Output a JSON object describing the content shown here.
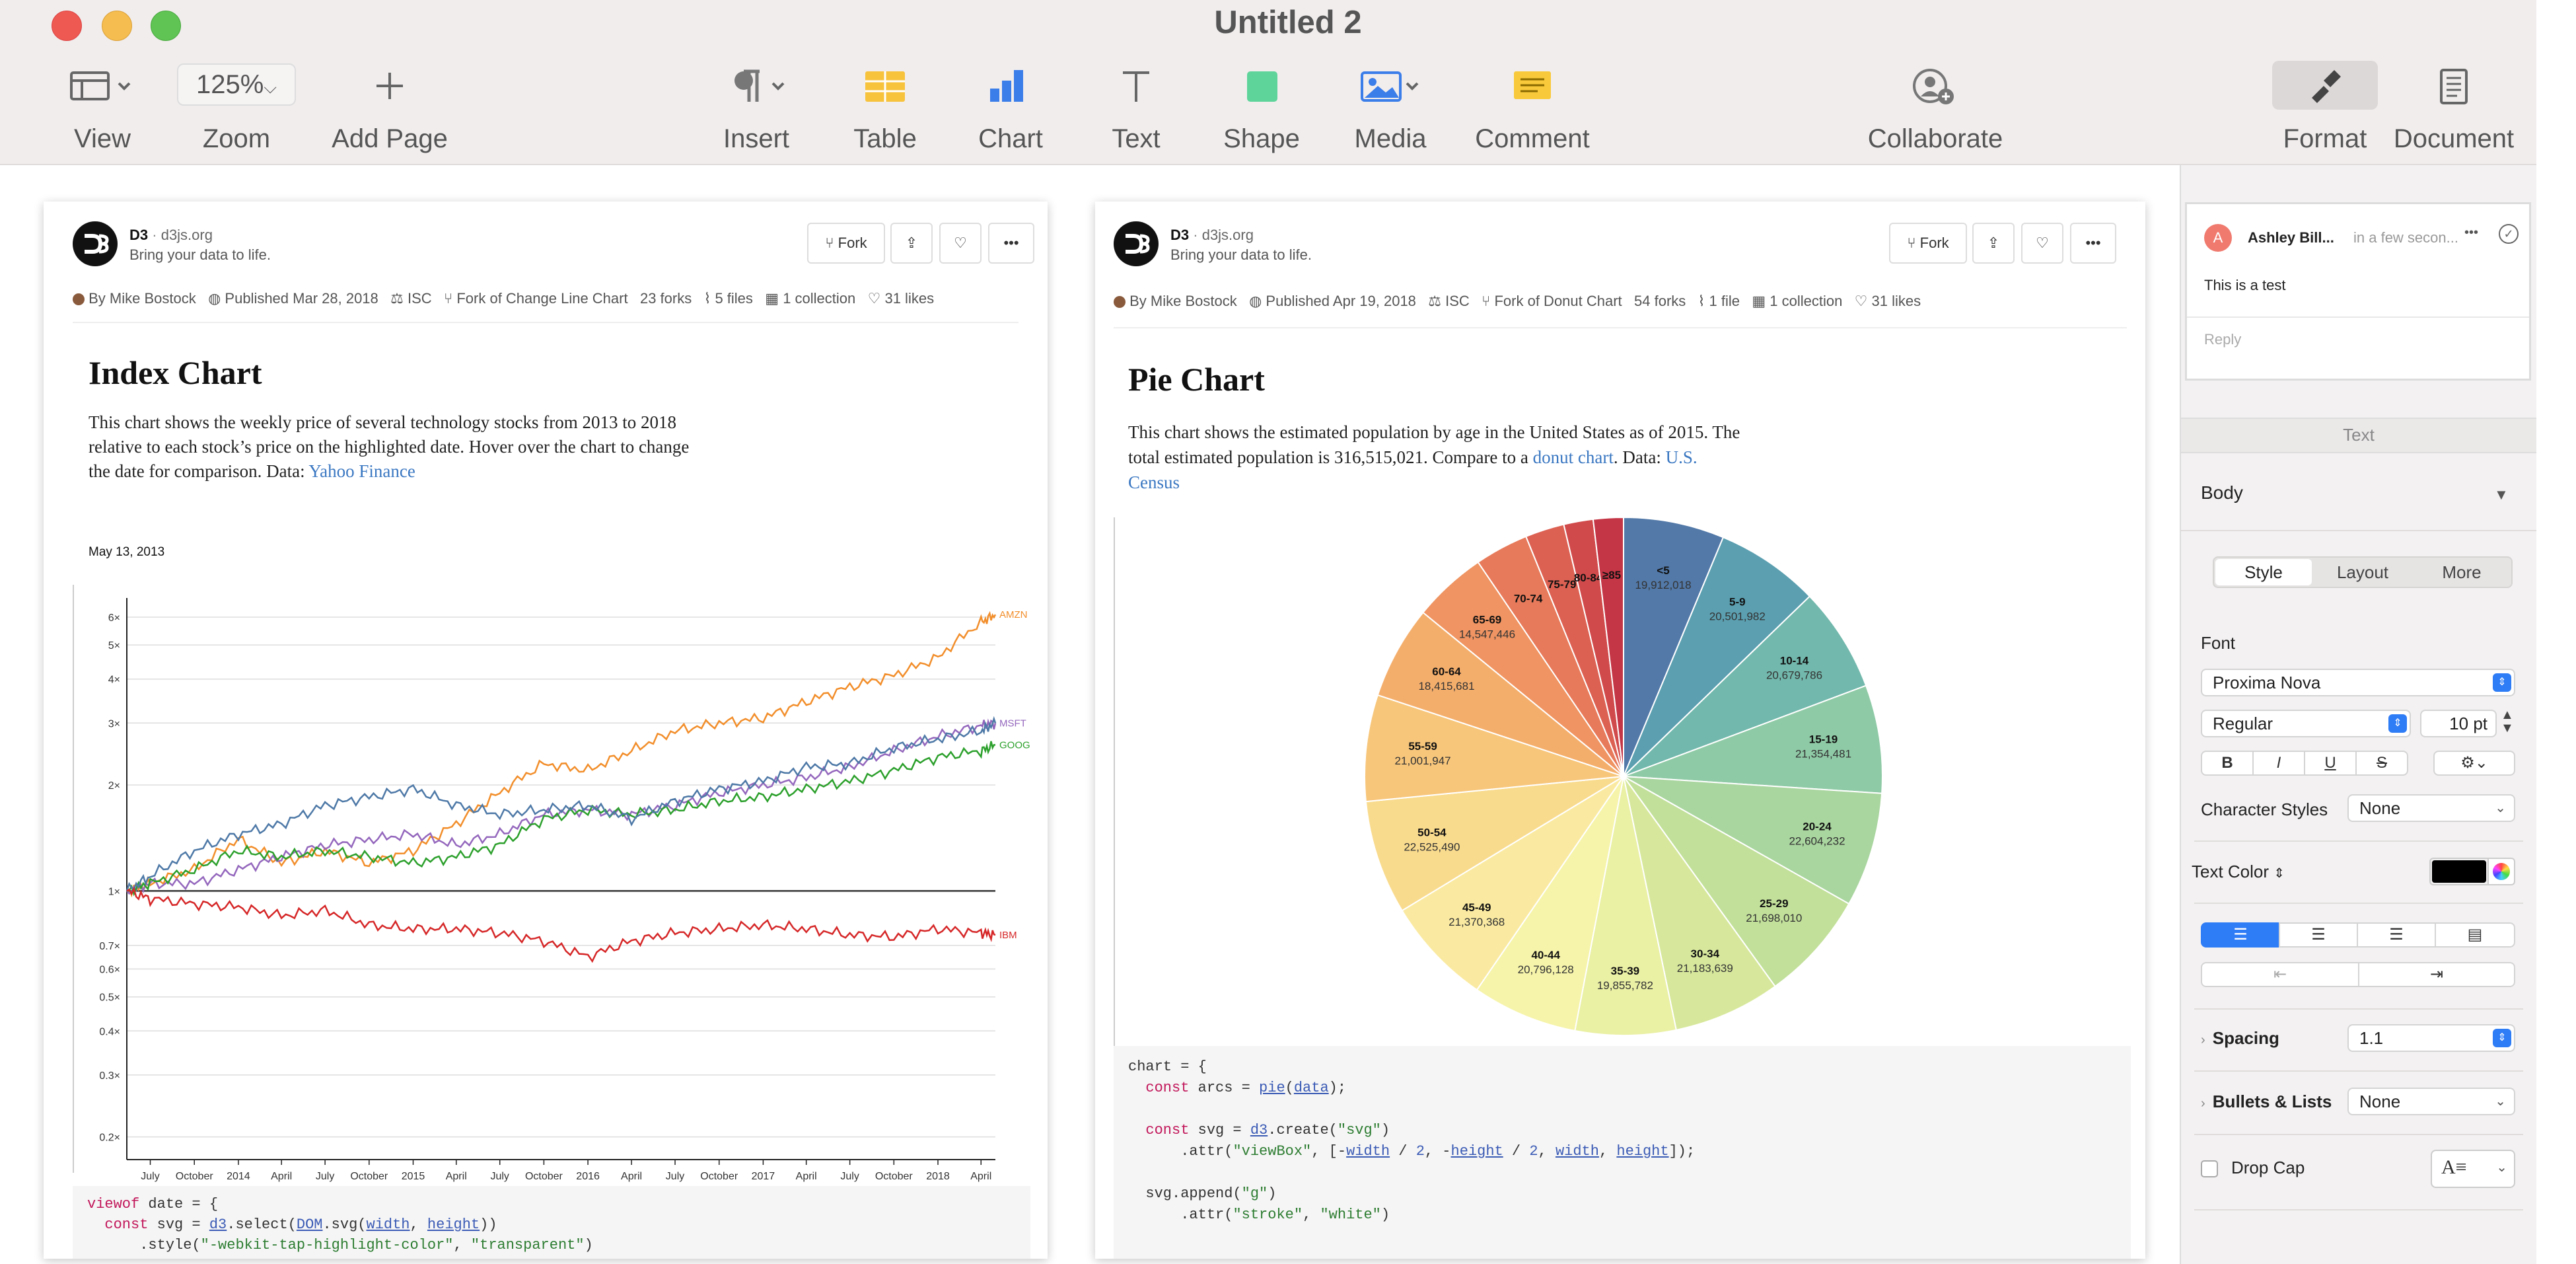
{
  "window": {
    "title": "Untitled 2"
  },
  "toolbar": {
    "view_label": "View",
    "zoom_value": "125%",
    "zoom_label": "Zoom",
    "add_page_label": "Add Page",
    "insert_label": "Insert",
    "table_label": "Table",
    "chart_label": "Chart",
    "text_label": "Text",
    "shape_label": "Shape",
    "media_label": "Media",
    "comment_label": "Comment",
    "collaborate_label": "Collaborate",
    "format_label": "Format",
    "document_label": "Document"
  },
  "doc1": {
    "brand": "D3",
    "site": "d3js.org",
    "tagline": "Bring your data to life.",
    "fork_label": "Fork",
    "author": "By Mike Bostock",
    "published": "Published Mar 28, 2018",
    "license": "ISC",
    "fork_of": "Fork of Change Line Chart",
    "forks": "23 forks",
    "files": "5 files",
    "collections": "1 collection",
    "likes": "31 likes",
    "title": "Index Chart",
    "desc1": "This chart shows the weekly price of several technology stocks from 2013 to 2018",
    "desc2": "relative to each stock’s price on the highlighted date. Hover over the chart to change",
    "desc3_prefix": "the date for comparison. Data: ",
    "desc3_link": "Yahoo Finance",
    "date_label": "May 13, 2013",
    "code1_kw": "viewof",
    "code1_rest": " date = {",
    "code2_kw": "const",
    "code2_a": " svg = ",
    "code2_b": "d3",
    "code2_c": ".select(",
    "code2_d": "DOM",
    "code2_e": ".svg(",
    "code2_f": "width",
    "code2_g": ", ",
    "code2_h": "height",
    "code2_i": "))",
    "code3_a": ".style(",
    "code3_b": "\"-webkit-tap-highlight-color\"",
    "code3_c": ", ",
    "code3_d": "\"transparent\"",
    "code3_e": ")"
  },
  "doc2": {
    "brand": "D3",
    "site": "d3js.org",
    "tagline": "Bring your data to life.",
    "fork_label": "Fork",
    "author": "By Mike Bostock",
    "published": "Published Apr 19, 2018",
    "license": "ISC",
    "fork_of": "Fork of Donut Chart",
    "forks": "54 forks",
    "files": "1 file",
    "collections": "1 collection",
    "likes": "31 likes",
    "title": "Pie Chart",
    "desc1": "This chart shows the estimated population by age in the United States as of 2015. The",
    "desc2_prefix": "total estimated population is 316,515,021. Compare to a ",
    "desc2_link": "donut chart",
    "desc2_mid": ". Data: ",
    "desc2_link2": "U.S.",
    "desc3_link": "Census",
    "code1": "chart = {",
    "code2_kw": "const",
    "code2_a": " arcs = ",
    "code2_b": "pie",
    "code2_c": "(",
    "code2_d": "data",
    "code2_e": ");",
    "code3_kw": "const",
    "code3_a": " svg = ",
    "code3_b": "d3",
    "code3_c": ".create(",
    "code3_d": "\"svg\"",
    "code3_e": ")",
    "code4_a": ".attr(",
    "code4_b": "\"viewBox\"",
    "code4_c": ", [-",
    "code4_d": "width",
    "code4_e": " / ",
    "code4_f": "2",
    "code4_g": ", -",
    "code4_h": "height",
    "code4_i": " / ",
    "code4_j": "2",
    "code4_k": ", ",
    "code4_l": "width",
    "code4_m": ", ",
    "code4_n": "height",
    "code4_o": "]);",
    "code5_a": "svg",
    "code5_b": ".append(",
    "code5_c": "\"g\"",
    "code5_d": ")",
    "code6_a": ".attr(",
    "code6_b": "\"stroke\"",
    "code6_c": ", ",
    "code6_d": "\"white\"",
    "code6_e": ")"
  },
  "comment": {
    "avatar": "A",
    "author": "Ashley Bill...",
    "time": "in a few secon...",
    "more": "•••",
    "text": "This is a test",
    "reply_placeholder": "Reply"
  },
  "format_panel": {
    "section": "Text",
    "paragraph_style": "Body",
    "tabs": [
      "Style",
      "Layout",
      "More"
    ],
    "font_label": "Font",
    "font_name": "Proxima Nova",
    "font_weight": "Regular",
    "font_size": "10 pt",
    "bold": "B",
    "italic": "I",
    "underline": "U",
    "strike": "S",
    "char_styles_label": "Character Styles",
    "char_styles_value": "None",
    "text_color_label": "Text Color",
    "text_color": "#000000",
    "spacing_label": "Spacing",
    "spacing_value": "1.1",
    "bullets_label": "Bullets & Lists",
    "bullets_value": "None",
    "drop_cap_label": "Drop Cap"
  },
  "chart_data": [
    {
      "type": "line",
      "title": "Index Chart",
      "x": [
        "2013-05-13",
        "2013-07-01",
        "2013-10-01",
        "2014-01-01",
        "2014-04-01",
        "2014-07-01",
        "2014-10-01",
        "2015-01-01",
        "2015-04-01",
        "2015-07-01",
        "2015-10-01",
        "2016-01-01",
        "2016-04-01",
        "2016-07-01",
        "2016-10-01",
        "2017-01-01",
        "2017-04-01",
        "2017-07-01",
        "2017-10-01",
        "2018-01-01",
        "2018-04-01",
        "2018-05-01"
      ],
      "x_tick_labels": [
        "July",
        "October",
        "2014",
        "April",
        "July",
        "October",
        "2015",
        "April",
        "July",
        "October",
        "2016",
        "April",
        "July",
        "October",
        "2017",
        "April",
        "July",
        "October",
        "2018",
        "April"
      ],
      "y_tick_labels": [
        "0.2×",
        "0.3×",
        "0.4×",
        "0.5×",
        "0.6×",
        "0.7×",
        "1×",
        "2×",
        "3×",
        "4×",
        "5×",
        "6×"
      ],
      "y_scale": "log",
      "ylim": [
        0.18,
        6.8
      ],
      "series": [
        {
          "name": "AMZN",
          "color": "#f28e2b",
          "values": [
            1.0,
            1.05,
            1.15,
            1.4,
            1.2,
            1.3,
            1.2,
            1.3,
            1.55,
            1.9,
            2.3,
            2.2,
            2.5,
            2.85,
            3.0,
            3.1,
            3.45,
            3.8,
            4.1,
            4.6,
            5.8,
            6.1
          ]
        },
        {
          "name": "MSFT",
          "color": "#9467bd",
          "values": [
            1.0,
            1.05,
            1.05,
            1.15,
            1.25,
            1.35,
            1.4,
            1.45,
            1.35,
            1.45,
            1.65,
            1.7,
            1.65,
            1.75,
            1.9,
            2.0,
            2.1,
            2.25,
            2.5,
            2.75,
            2.95,
            3.0
          ]
        },
        {
          "name": "GOOG",
          "color": "#2ca02c",
          "values": [
            1.0,
            1.05,
            1.15,
            1.3,
            1.25,
            1.3,
            1.25,
            1.2,
            1.25,
            1.35,
            1.6,
            1.7,
            1.65,
            1.7,
            1.8,
            1.85,
            1.95,
            2.05,
            2.2,
            2.4,
            2.5,
            2.6
          ]
        },
        {
          "name": "",
          "color": "#4e79a7",
          "values": [
            1.0,
            1.1,
            1.3,
            1.45,
            1.55,
            1.75,
            1.85,
            1.95,
            1.75,
            1.65,
            1.7,
            1.75,
            1.6,
            1.8,
            1.95,
            2.05,
            2.25,
            2.3,
            2.55,
            2.7,
            2.85,
            3.0
          ]
        },
        {
          "name": "IBM",
          "color": "#d62728",
          "values": [
            1.0,
            0.95,
            0.92,
            0.9,
            0.85,
            0.88,
            0.8,
            0.78,
            0.78,
            0.76,
            0.72,
            0.65,
            0.72,
            0.76,
            0.78,
            0.8,
            0.78,
            0.75,
            0.74,
            0.78,
            0.76,
            0.75
          ]
        }
      ]
    },
    {
      "type": "pie",
      "title": "Pie Chart",
      "categories": [
        "<5",
        "5-9",
        "10-14",
        "15-19",
        "20-24",
        "25-29",
        "30-34",
        "35-39",
        "40-44",
        "45-49",
        "50-54",
        "55-59",
        "60-64",
        "65-69",
        "70-74",
        "75-79",
        "80-84",
        "≥85"
      ],
      "values": [
        19912018,
        20501982,
        20679786,
        21354481,
        22604232,
        21698010,
        21183639,
        19855782,
        20796128,
        21370368,
        22525490,
        21001947,
        18415681,
        14547446,
        10587721,
        7730129,
        5811429,
        5938752
      ],
      "value_labels": [
        "19,912,018",
        "20,501,982",
        "20,679,786",
        "21,354,481",
        "22,604,232",
        "21,698,010",
        "21,183,639",
        "19,855,782",
        "20,796,128",
        "21,370,368",
        "22,525,490",
        "21,001,947",
        "18,415,681",
        "14,547,446",
        "",
        "",
        "",
        ""
      ],
      "colors": [
        "#5279a8",
        "#5b9fb0",
        "#72b8ac",
        "#8fcaa6",
        "#a9d59f",
        "#c2e09a",
        "#d7e89c",
        "#eaf0a4",
        "#f6f4aa",
        "#faeaa1",
        "#f9db8e",
        "#f7c67b",
        "#f4ae6c",
        "#ef9462",
        "#e77a5a",
        "#dc6153",
        "#d14a4b",
        "#c43545"
      ]
    }
  ]
}
